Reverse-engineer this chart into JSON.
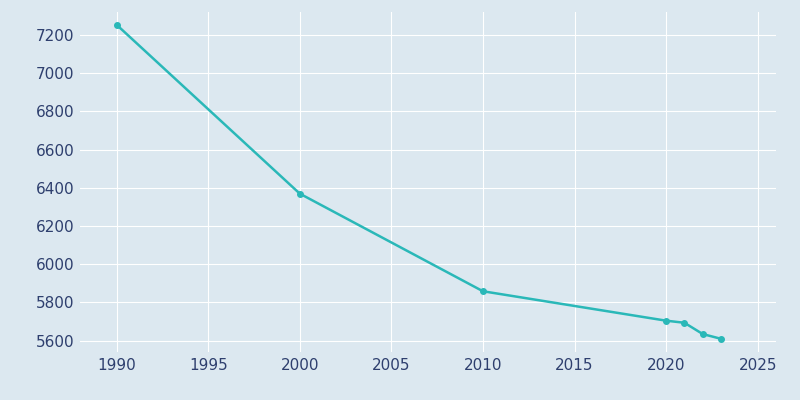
{
  "years": [
    1990,
    2000,
    2010,
    2020,
    2021,
    2022,
    2023
  ],
  "population": [
    7253,
    6369,
    5858,
    5704,
    5693,
    5634,
    5609
  ],
  "line_color": "#2ab8b8",
  "marker_color": "#2ab8b8",
  "bg_color": "#dce8f0",
  "plot_bg_color": "#dce8f0",
  "grid_color": "#ffffff",
  "xlim": [
    1988,
    2026
  ],
  "ylim": [
    5540,
    7320
  ],
  "xticks": [
    1990,
    1995,
    2000,
    2005,
    2010,
    2015,
    2020,
    2025
  ],
  "yticks": [
    5600,
    5800,
    6000,
    6200,
    6400,
    6600,
    6800,
    7000,
    7200
  ],
  "tick_color": "#2e3f6e",
  "label_fontsize": 11
}
